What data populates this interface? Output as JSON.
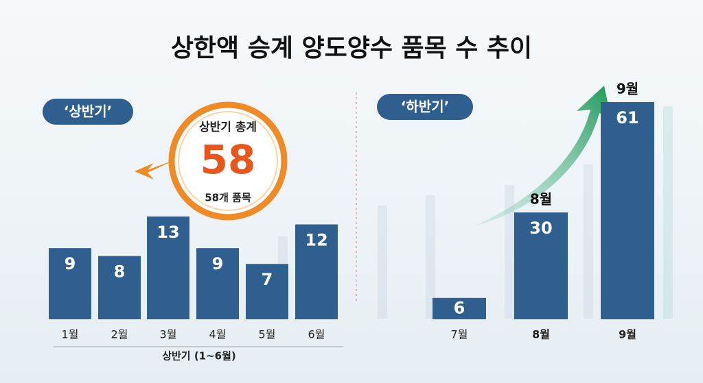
{
  "title": "상한액 승계 양도양수 품목 수 추이",
  "chart_data": [
    {
      "type": "bar",
      "title": "‘상반기’",
      "axis_label": "상반기 (1~6월)",
      "categories": [
        "1월",
        "2월",
        "3월",
        "4월",
        "5월",
        "6월"
      ],
      "values": [
        9,
        8,
        13,
        9,
        7,
        12
      ],
      "color": "#2f5f8f",
      "summary": {
        "title": "상반기 총계",
        "value": 58,
        "label": "58개 품목"
      }
    },
    {
      "type": "bar",
      "title": "‘하반기’",
      "categories": [
        "7월",
        "8월",
        "9월"
      ],
      "values": [
        6,
        30,
        61
      ],
      "color": "#2f5f8f"
    }
  ]
}
